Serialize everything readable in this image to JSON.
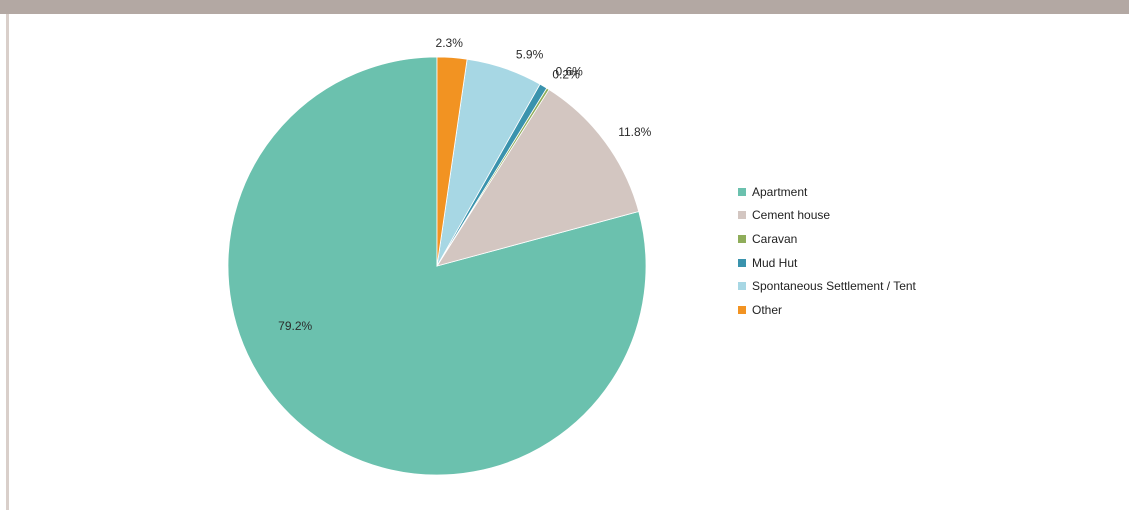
{
  "colors": {
    "top_bar": "#b3a8a3",
    "left_rule": "#d9cfca"
  },
  "chart_data": {
    "type": "pie",
    "title": "",
    "start_angle_deg": 0,
    "direction": "counterclockwise",
    "legend_position": "right",
    "slices": [
      {
        "label": "Apartment",
        "value": 79.2,
        "display": "79.2%",
        "color": "#6bc1ae"
      },
      {
        "label": "Cement house",
        "value": 11.8,
        "display": "11.8%",
        "color": "#d3c6c1"
      },
      {
        "label": "Caravan",
        "value": 0.2,
        "display": "0.2%",
        "color": "#8fad5a"
      },
      {
        "label": "Mud Hut",
        "value": 0.6,
        "display": "0.6%",
        "color": "#3a93ad"
      },
      {
        "label": "Spontaneous Settlement / Tent",
        "value": 5.9,
        "display": "5.9%",
        "color": "#a7d7e4"
      },
      {
        "label": "Other",
        "value": 2.3,
        "display": "2.3%",
        "color": "#f29322"
      }
    ]
  }
}
